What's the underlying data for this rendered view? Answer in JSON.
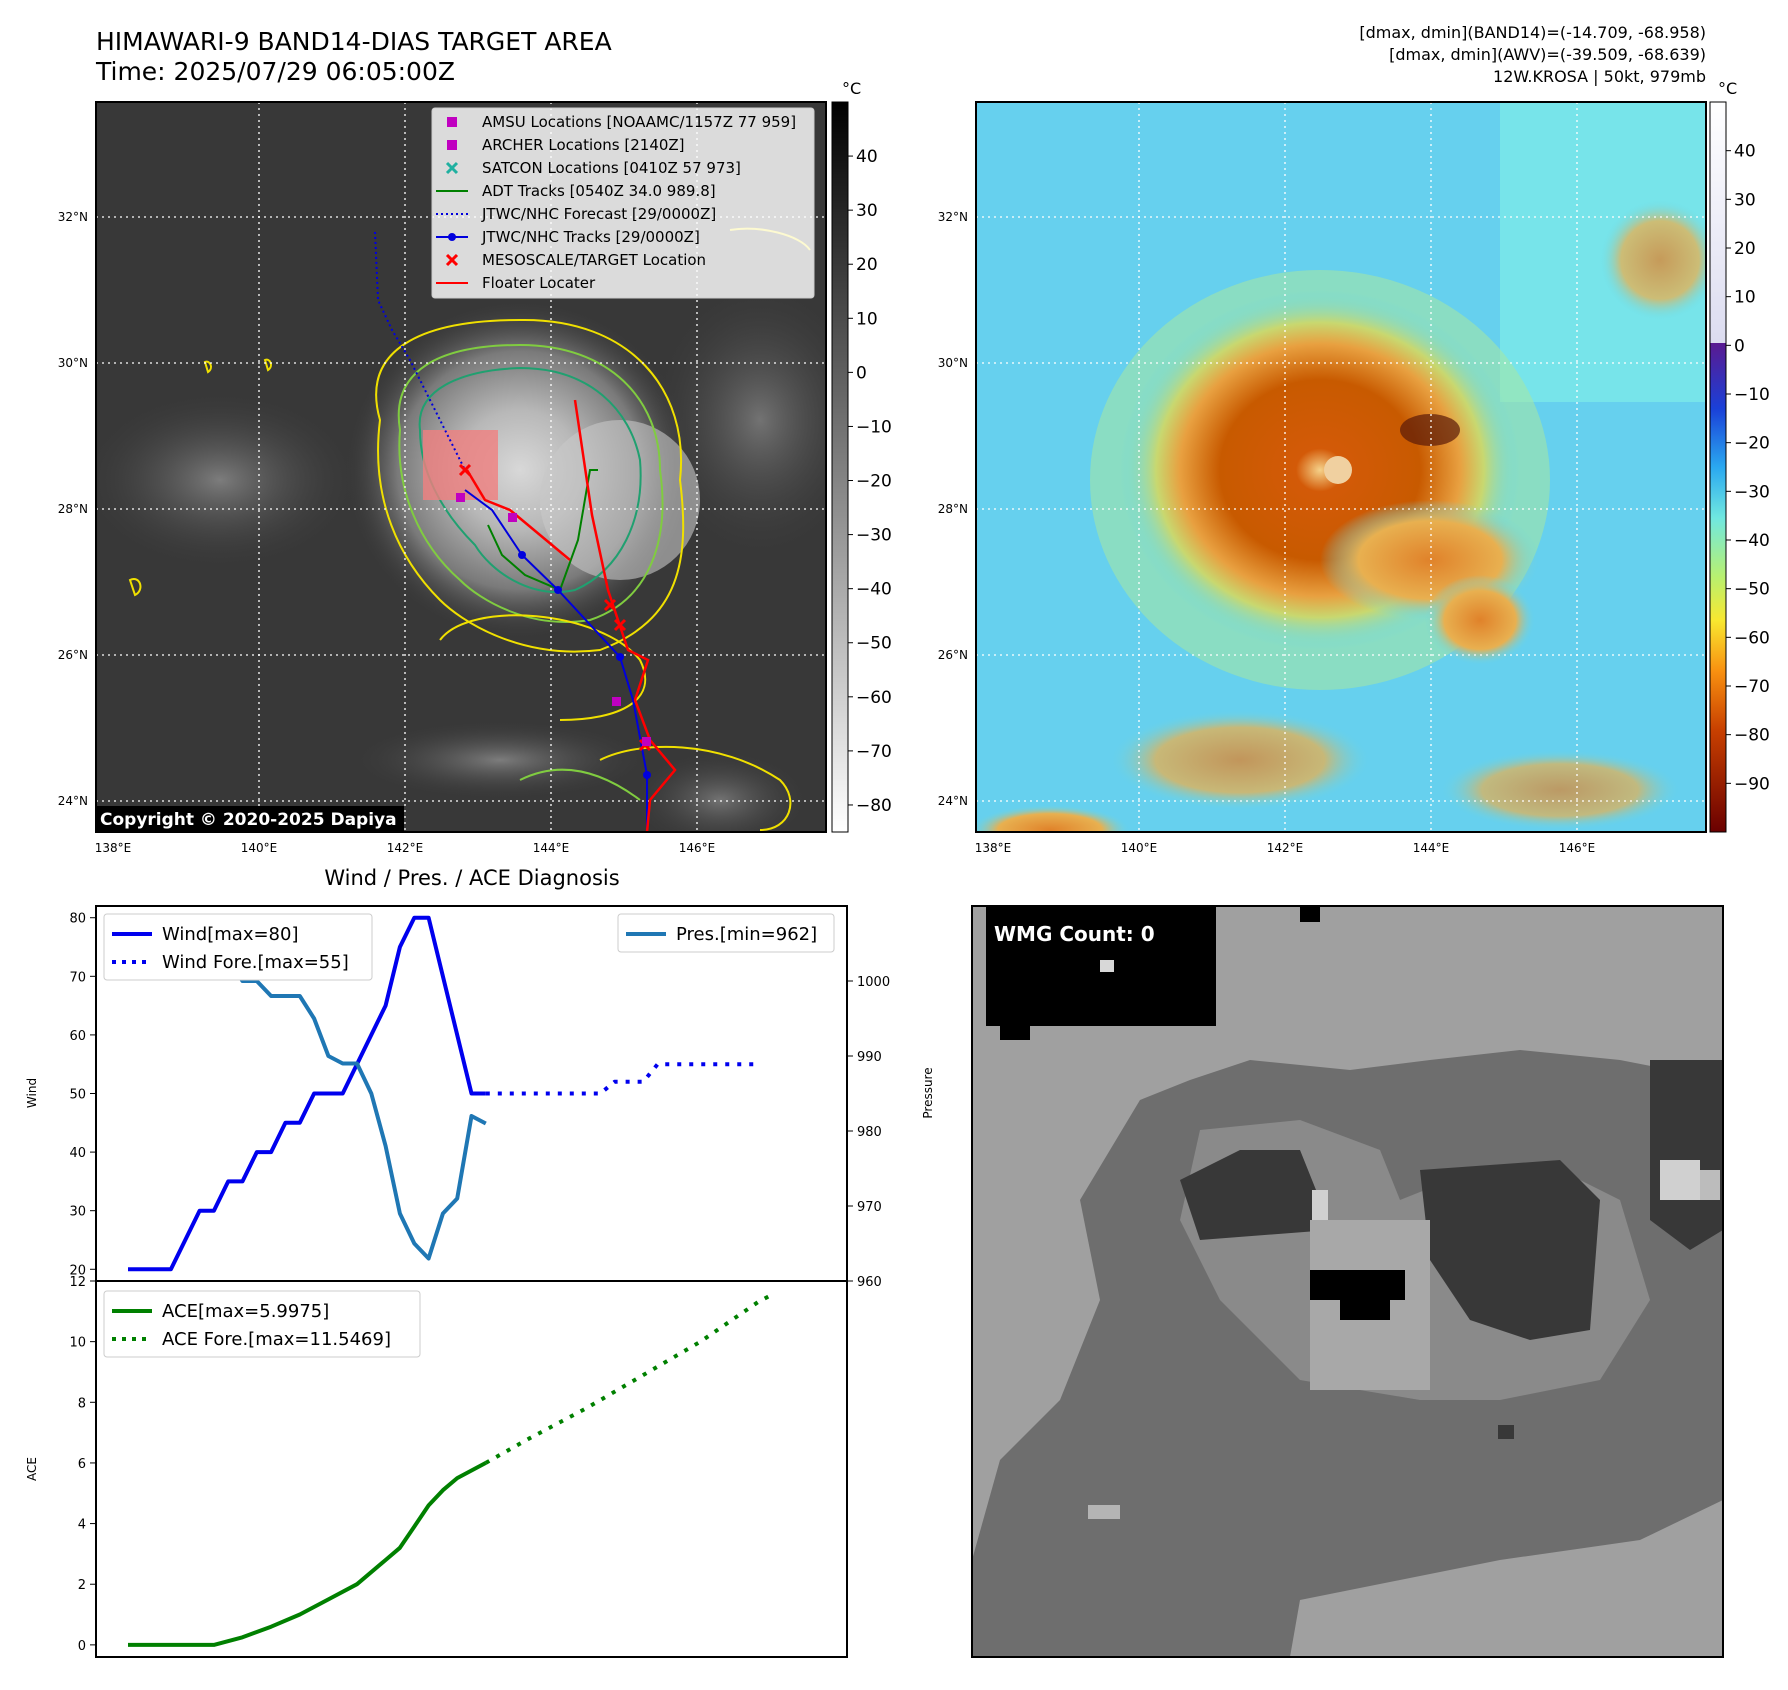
{
  "header": {
    "title": "HIMAWARI-9 BAND14-DIAS TARGET AREA",
    "time": "Time: 2025/07/29 06:05:00Z",
    "dmax_band14": "[dmax, dmin](BAND14)=(-14.709, -68.958)",
    "dmax_awv": "[dmax, dmin](AWV)=(-39.509, -68.639)",
    "storm": "12W.KROSA | 50kt, 979mb"
  },
  "maps": {
    "lat_ticks": [
      "24°N",
      "26°N",
      "28°N",
      "30°N",
      "32°N"
    ],
    "lon_ticks": [
      "138°E",
      "140°E",
      "142°E",
      "144°E",
      "146°E"
    ],
    "copyright": "Copyright © 2020-2025 Dapiya",
    "colorbar_unit": "°C",
    "ir_colorbar_ticks": [
      "40",
      "30",
      "20",
      "10",
      "0",
      "−10",
      "−20",
      "−30",
      "−40",
      "−50",
      "−60",
      "−70",
      "−80"
    ],
    "wv_colorbar_ticks": [
      "40",
      "30",
      "20",
      "10",
      "0",
      "−10",
      "−20",
      "−30",
      "−40",
      "−50",
      "−60",
      "−70",
      "−80",
      "−90"
    ],
    "legend": [
      {
        "label": "AMSU Locations [NOAAMC/1157Z 77 959]",
        "color": "#c000c0",
        "marker": "square"
      },
      {
        "label": "ARCHER Locations [2140Z]",
        "color": "#c000c0",
        "marker": "square"
      },
      {
        "label": "SATCON Locations [0410Z 57 973]",
        "color": "#20b0a0",
        "marker": "x"
      },
      {
        "label": "ADT Tracks [0540Z 34.0 989.8]",
        "color": "#008000",
        "marker": "line"
      },
      {
        "label": "JTWC/NHC Forecast [29/0000Z]",
        "color": "#0000dd",
        "marker": "dotted"
      },
      {
        "label": "JTWC/NHC Tracks [29/0000Z]",
        "color": "#0000dd",
        "marker": "line-dot"
      },
      {
        "label": "MESOSCALE/TARGET Location",
        "color": "#ff0000",
        "marker": "x"
      },
      {
        "label": "Floater Locater",
        "color": "#ff0000",
        "marker": "line"
      }
    ]
  },
  "wmg": {
    "label": "WMG Count: 0"
  },
  "chart_data": [
    {
      "type": "line",
      "title": "Wind / Pres. / ACE Diagnosis",
      "ylabel": "Wind",
      "ylabel_right": "Pressure",
      "ylim": [
        18,
        82
      ],
      "ylim_right": [
        960,
        1010
      ],
      "yticks": [
        20,
        30,
        40,
        50,
        60,
        70,
        80
      ],
      "yticks_right": [
        960,
        970,
        980,
        990,
        1000
      ],
      "legend_left": [
        "Wind[max=80]",
        "Wind Fore.[max=55]"
      ],
      "legend_right": [
        "Pres.[min=962]"
      ],
      "x_range": [
        0,
        24
      ],
      "series": [
        {
          "name": "Wind[max=80]",
          "axis": "left",
          "color": "#0000ee",
          "style": "solid",
          "points": [
            [
              0,
              20
            ],
            [
              1.5,
              20
            ],
            [
              2.5,
              30
            ],
            [
              3,
              30
            ],
            [
              3.5,
              35
            ],
            [
              4,
              35
            ],
            [
              4.5,
              40
            ],
            [
              5,
              40
            ],
            [
              5.5,
              45
            ],
            [
              6,
              45
            ],
            [
              6.5,
              50
            ],
            [
              7.5,
              50
            ],
            [
              8.5,
              60
            ],
            [
              9,
              65
            ],
            [
              9.5,
              75
            ],
            [
              10,
              80
            ],
            [
              10.5,
              80
            ],
            [
              12,
              50
            ],
            [
              12.5,
              50
            ]
          ]
        },
        {
          "name": "Wind Fore.[max=55]",
          "axis": "left",
          "color": "#0000ee",
          "style": "dotted",
          "points": [
            [
              12.5,
              50
            ],
            [
              16.5,
              50
            ],
            [
              17,
              52
            ],
            [
              18,
              52
            ],
            [
              18.5,
              55
            ],
            [
              22,
              55
            ]
          ]
        },
        {
          "name": "Pres.[min=962]",
          "axis": "right",
          "color": "#1f77b4",
          "style": "solid",
          "points": [
            [
              0,
              1007
            ],
            [
              1.5,
              1007
            ],
            [
              2,
              1004
            ],
            [
              2.5,
              1004
            ],
            [
              3,
              1003
            ],
            [
              3.5,
              1003
            ],
            [
              4,
              1000
            ],
            [
              4.5,
              1000
            ],
            [
              5,
              998
            ],
            [
              6,
              998
            ],
            [
              6.5,
              995
            ],
            [
              7,
              990
            ],
            [
              7.5,
              989
            ],
            [
              8,
              989
            ],
            [
              8.5,
              985
            ],
            [
              9,
              978
            ],
            [
              9.5,
              969
            ],
            [
              10,
              965
            ],
            [
              10.5,
              963
            ],
            [
              11,
              969
            ],
            [
              11.5,
              971
            ],
            [
              12,
              982
            ],
            [
              12.5,
              981
            ]
          ]
        }
      ]
    },
    {
      "type": "line",
      "ylabel": "ACE",
      "ylim": [
        -0.4,
        12
      ],
      "yticks": [
        0,
        2,
        4,
        6,
        8,
        10,
        12
      ],
      "legend": [
        "ACE[max=5.9975]",
        "ACE Fore.[max=11.5469]"
      ],
      "x_range": [
        0,
        24
      ],
      "series": [
        {
          "name": "ACE[max=5.9975]",
          "color": "#008000",
          "style": "solid",
          "points": [
            [
              0,
              0
            ],
            [
              3,
              0
            ],
            [
              4,
              0.25
            ],
            [
              5,
              0.6
            ],
            [
              6,
              1.0
            ],
            [
              7,
              1.5
            ],
            [
              8,
              2.0
            ],
            [
              9,
              2.8
            ],
            [
              9.5,
              3.2
            ],
            [
              10,
              3.9
            ],
            [
              10.5,
              4.6
            ],
            [
              11,
              5.1
            ],
            [
              11.5,
              5.5
            ],
            [
              12.5,
              6.0
            ]
          ]
        },
        {
          "name": "ACE Fore.[max=11.5469]",
          "color": "#008000",
          "style": "dotted",
          "points": [
            [
              12.5,
              6.0
            ],
            [
              14,
              6.8
            ],
            [
              16,
              7.8
            ],
            [
              18,
              8.9
            ],
            [
              20,
              10.0
            ],
            [
              22,
              11.3
            ],
            [
              22.5,
              11.55
            ]
          ]
        }
      ]
    }
  ]
}
